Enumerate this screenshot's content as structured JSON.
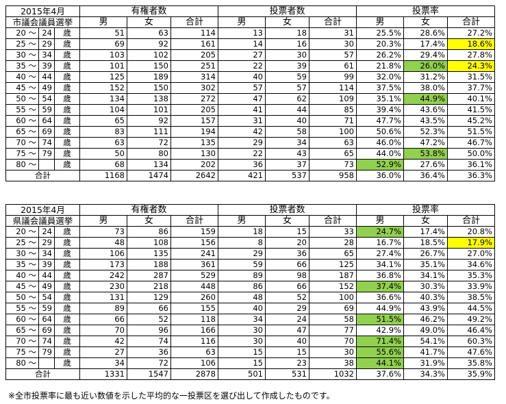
{
  "colors": {
    "green": "#92d050",
    "yellow": "#ffff00"
  },
  "tables": [
    {
      "label_line1": "2015年4月",
      "label_line2": "市議会議員選挙",
      "group_headers": [
        "有権者数",
        "投票者数",
        "投票率"
      ],
      "sub_headers": [
        "男",
        "女",
        "合計",
        "男",
        "女",
        "合計",
        "男",
        "女",
        "合計"
      ],
      "rows": [
        {
          "age": [
            "20 ～",
            "24",
            "歳"
          ],
          "cells": [
            "51",
            "63",
            "114",
            "13",
            "18",
            "31",
            "25.5%",
            "28.6%",
            "27.2%"
          ],
          "hl": {}
        },
        {
          "age": [
            "25 ～",
            "29",
            "歳"
          ],
          "cells": [
            "69",
            "92",
            "161",
            "14",
            "16",
            "30",
            "20.3%",
            "17.4%",
            "18.6%"
          ],
          "hl": {
            "8": "yellow"
          }
        },
        {
          "age": [
            "30 ～",
            "34",
            "歳"
          ],
          "cells": [
            "103",
            "102",
            "205",
            "27",
            "30",
            "57",
            "26.2%",
            "29.4%",
            "27.8%"
          ],
          "hl": {}
        },
        {
          "age": [
            "35 ～",
            "39",
            "歳"
          ],
          "cells": [
            "101",
            "150",
            "251",
            "22",
            "39",
            "61",
            "21.8%",
            "26.0%",
            "24.3%"
          ],
          "hl": {
            "7": "green",
            "8": "yellow"
          }
        },
        {
          "age": [
            "40 ～",
            "44",
            "歳"
          ],
          "cells": [
            "125",
            "189",
            "314",
            "40",
            "59",
            "99",
            "32.0%",
            "31.2%",
            "31.5%"
          ],
          "hl": {}
        },
        {
          "age": [
            "45 ～",
            "49",
            "歳"
          ],
          "cells": [
            "152",
            "150",
            "302",
            "57",
            "57",
            "114",
            "37.5%",
            "38.0%",
            "37.7%"
          ],
          "hl": {}
        },
        {
          "age": [
            "50 ～",
            "54",
            "歳"
          ],
          "cells": [
            "134",
            "138",
            "272",
            "47",
            "62",
            "109",
            "35.1%",
            "44.9%",
            "40.1%"
          ],
          "hl": {
            "7": "green"
          }
        },
        {
          "age": [
            "55 ～",
            "59",
            "歳"
          ],
          "cells": [
            "104",
            "101",
            "205",
            "41",
            "44",
            "85",
            "39.4%",
            "43.6%",
            "41.5%"
          ],
          "hl": {}
        },
        {
          "age": [
            "60 ～",
            "64",
            "歳"
          ],
          "cells": [
            "65",
            "92",
            "157",
            "31",
            "40",
            "71",
            "47.7%",
            "43.5%",
            "45.2%"
          ],
          "hl": {}
        },
        {
          "age": [
            "65 ～",
            "69",
            "歳"
          ],
          "cells": [
            "83",
            "111",
            "194",
            "42",
            "58",
            "100",
            "50.6%",
            "52.3%",
            "51.5%"
          ],
          "hl": {}
        },
        {
          "age": [
            "70 ～",
            "74",
            "歳"
          ],
          "cells": [
            "63",
            "72",
            "135",
            "29",
            "34",
            "63",
            "46.0%",
            "47.2%",
            "46.7%"
          ],
          "hl": {}
        },
        {
          "age": [
            "75 ～",
            "79",
            "歳"
          ],
          "cells": [
            "50",
            "80",
            "130",
            "22",
            "43",
            "65",
            "44.0%",
            "53.8%",
            "50.0%"
          ],
          "hl": {
            "7": "green"
          }
        },
        {
          "age": [
            "80 ～",
            "",
            "歳"
          ],
          "cells": [
            "68",
            "134",
            "202",
            "36",
            "37",
            "73",
            "52.9%",
            "27.6%",
            "36.1%"
          ],
          "hl": {
            "6": "green"
          }
        }
      ],
      "total_label": "合計",
      "total_cells": [
        "1168",
        "1474",
        "2642",
        "421",
        "537",
        "958",
        "36.0%",
        "36.4%",
        "36.3%"
      ]
    },
    {
      "label_line1": "2015年4月",
      "label_line2": "県議会議員選挙",
      "group_headers": [
        "有権者数",
        "投票者数",
        "投票率"
      ],
      "sub_headers": [
        "男",
        "女",
        "合計",
        "男",
        "女",
        "合計",
        "男",
        "女",
        "合計"
      ],
      "rows": [
        {
          "age": [
            "20 ～",
            "24",
            "歳"
          ],
          "cells": [
            "73",
            "86",
            "159",
            "18",
            "15",
            "33",
            "24.7%",
            "17.4%",
            "20.8%"
          ],
          "hl": {
            "6": "green"
          }
        },
        {
          "age": [
            "25 ～",
            "29",
            "歳"
          ],
          "cells": [
            "48",
            "108",
            "156",
            "8",
            "20",
            "28",
            "16.7%",
            "18.5%",
            "17.9%"
          ],
          "hl": {
            "8": "yellow"
          }
        },
        {
          "age": [
            "30 ～",
            "34",
            "歳"
          ],
          "cells": [
            "106",
            "135",
            "241",
            "29",
            "36",
            "65",
            "27.4%",
            "26.7%",
            "27.0%"
          ],
          "hl": {}
        },
        {
          "age": [
            "35 ～",
            "39",
            "歳"
          ],
          "cells": [
            "173",
            "188",
            "361",
            "59",
            "66",
            "125",
            "34.1%",
            "35.1%",
            "34.6%"
          ],
          "hl": {}
        },
        {
          "age": [
            "40 ～",
            "44",
            "歳"
          ],
          "cells": [
            "242",
            "287",
            "529",
            "89",
            "98",
            "187",
            "36.8%",
            "34.1%",
            "35.3%"
          ],
          "hl": {}
        },
        {
          "age": [
            "45 ～",
            "49",
            "歳"
          ],
          "cells": [
            "230",
            "218",
            "448",
            "86",
            "66",
            "152",
            "37.4%",
            "30.3%",
            "33.9%"
          ],
          "hl": {
            "6": "green"
          }
        },
        {
          "age": [
            "50 ～",
            "54",
            "歳"
          ],
          "cells": [
            "131",
            "129",
            "260",
            "48",
            "52",
            "100",
            "36.6%",
            "40.3%",
            "38.5%"
          ],
          "hl": {}
        },
        {
          "age": [
            "55 ～",
            "59",
            "歳"
          ],
          "cells": [
            "89",
            "66",
            "155",
            "40",
            "29",
            "69",
            "44.9%",
            "43.9%",
            "44.5%"
          ],
          "hl": {}
        },
        {
          "age": [
            "60 ～",
            "64",
            "歳"
          ],
          "cells": [
            "66",
            "52",
            "118",
            "34",
            "24",
            "58",
            "51.5%",
            "46.2%",
            "49.2%"
          ],
          "hl": {
            "6": "green"
          }
        },
        {
          "age": [
            "65 ～",
            "69",
            "歳"
          ],
          "cells": [
            "70",
            "96",
            "166",
            "30",
            "47",
            "77",
            "42.9%",
            "49.0%",
            "46.4%"
          ],
          "hl": {}
        },
        {
          "age": [
            "70 ～",
            "74",
            "歳"
          ],
          "cells": [
            "42",
            "74",
            "116",
            "30",
            "40",
            "70",
            "71.4%",
            "54.1%",
            "60.3%"
          ],
          "hl": {
            "6": "green"
          }
        },
        {
          "age": [
            "75 ～",
            "79",
            "歳"
          ],
          "cells": [
            "27",
            "36",
            "63",
            "15",
            "15",
            "30",
            "55.6%",
            "41.7%",
            "47.6%"
          ],
          "hl": {
            "6": "green"
          }
        },
        {
          "age": [
            "80 ～",
            "",
            "歳"
          ],
          "cells": [
            "34",
            "72",
            "106",
            "15",
            "23",
            "38",
            "44.1%",
            "31.9%",
            "35.8%"
          ],
          "hl": {
            "6": "green"
          }
        }
      ],
      "total_label": "合計",
      "total_cells": [
        "1331",
        "1547",
        "2878",
        "501",
        "531",
        "1032",
        "37.6%",
        "34.3%",
        "35.9%"
      ]
    }
  ],
  "footnote": "※全市投票率に最も近い数値を示した平均的な一投票区を選び出して作成したものです。"
}
